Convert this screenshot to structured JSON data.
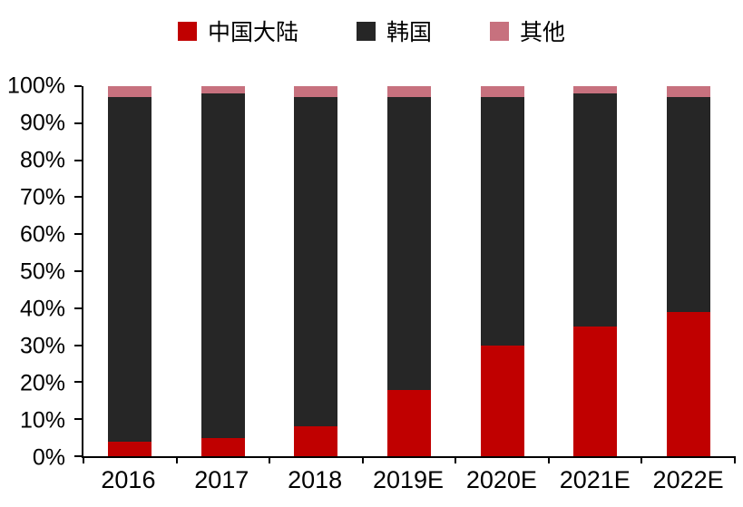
{
  "chart_data": {
    "type": "bar",
    "stacked": true,
    "percent_stacked": true,
    "title": "",
    "xlabel": "",
    "ylabel": "",
    "categories": [
      "2016",
      "2017",
      "2018",
      "2019E",
      "2020E",
      "2021E",
      "2022E"
    ],
    "series": [
      {
        "name": "中国大陆",
        "color": "#c00000",
        "values": [
          4,
          5,
          8,
          18,
          30,
          35,
          39
        ]
      },
      {
        "name": "韩国",
        "color": "#262626",
        "values": [
          93,
          93,
          89,
          79,
          67,
          63,
          58
        ]
      },
      {
        "name": "其他",
        "color": "#c7717e",
        "values": [
          3,
          2,
          3,
          3,
          3,
          2,
          3
        ]
      }
    ],
    "ylim": [
      0,
      100
    ],
    "ytick_step": 10,
    "ytick_suffix": "%",
    "ytick_labels": [
      "0%",
      "10%",
      "20%",
      "30%",
      "40%",
      "50%",
      "60%",
      "70%",
      "80%",
      "90%",
      "100%"
    ],
    "legend_position": "top",
    "grid": false,
    "axis_color": "#000000",
    "background": "#ffffff"
  }
}
